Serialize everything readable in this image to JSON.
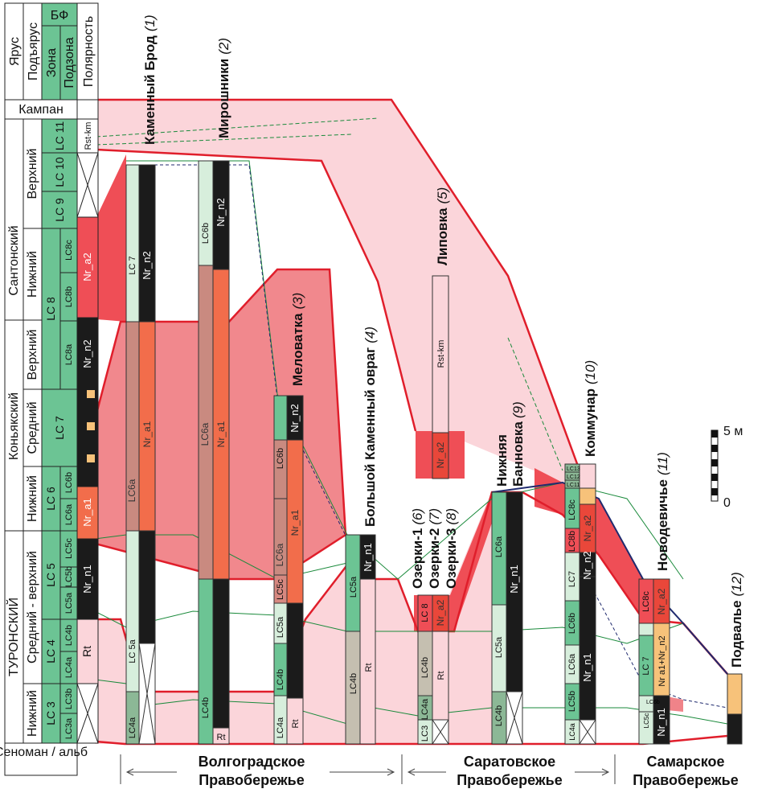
{
  "colors": {
    "lc_green": "#6cc494",
    "lc_light": "#d7eedc",
    "nr_black": "#1b1b1b",
    "nr_red": "#e9473a",
    "nr_orange": "#f26d4b",
    "pink_fill": "#fbd5da",
    "red_fill": "#ef7b81",
    "red_line": "#e01e2b",
    "green_line": "#1a8a3b",
    "navy_line": "#1f2a6e",
    "orange_sq": "#f7c27a",
    "gray_lc": "#c5bfb0"
  },
  "scale": {
    "top": "5 м",
    "bottom": "0"
  },
  "header": {
    "stage": "Ярус",
    "substage": "Подъярус",
    "zone": "Зона",
    "subzone": "Подзона",
    "bf": "БФ",
    "polarity": "Полярность"
  },
  "stages": {
    "campanian": "Кампан",
    "santonian": "Сантонский",
    "coniacian": "Коньякский",
    "turonian": "ТУРОНСКИЙ",
    "cenomanian": "Сеноман / альб"
  },
  "substages": {
    "santon_upper": "Верхний",
    "santon_lower": "Нижний",
    "con_upper": "Верхний",
    "con_middle": "Средний",
    "con_lower": "Нижний",
    "tur_midup": "Средний - верхний",
    "tur_lower": "Нижний"
  },
  "zones": {
    "lc11": "LC 11",
    "lc10": "LC 10",
    "lc9": "LC 9",
    "lc8": "LC 8",
    "lc7": "LC 7",
    "lc6": "LC 6",
    "lc5": "LC 5",
    "lc4": "LC 4",
    "lc3": "LC 3"
  },
  "subzones": {
    "lc8c": "LC8c",
    "lc8b": "LC8b",
    "lc8a": "LC8a",
    "lc6b": "LC6b",
    "lc6a": "LC6a",
    "lc5c": "LC5c",
    "lc5b": "LC5b",
    "lc5a": "LC5a",
    "lc4b": "LC4b",
    "lc4a": "LC4a",
    "lc3b": "LC3b",
    "lc3a": "LC3a"
  },
  "polarity": {
    "rstkm": "Rst-km",
    "nra2": "Nr_a2",
    "nrn2": "Nr_n2",
    "nra1": "Nr_a1",
    "nrn1": "Nr_n1",
    "rt": "Rt"
  },
  "sections": [
    {
      "id": "s1",
      "name": "Каменный Брод",
      "num": "(1)"
    },
    {
      "id": "s2",
      "name": "Мирошники",
      "num": "(2)"
    },
    {
      "id": "s3",
      "name": "Меловатка",
      "num": "(3)"
    },
    {
      "id": "s4",
      "name": "Большой Каменный овраг",
      "num": "(4)"
    },
    {
      "id": "s5",
      "name": "Липовка",
      "num": "(5)"
    },
    {
      "id": "s6",
      "name": "Озерки-1",
      "num": "(6)"
    },
    {
      "id": "s7",
      "name": "Озерки-2",
      "num": "(7)"
    },
    {
      "id": "s8",
      "name": "Озерки-3",
      "num": "(8)"
    },
    {
      "id": "s9a",
      "name": "Нижняя",
      "num": ""
    },
    {
      "id": "s9",
      "name": "Банновка",
      "num": "(9)"
    },
    {
      "id": "s10",
      "name": "Коммунар",
      "num": "(10)"
    },
    {
      "id": "s11",
      "name": "Новодевичье",
      "num": "(11)"
    },
    {
      "id": "s12",
      "name": "Подвалье",
      "num": "(12)"
    }
  ],
  "col_labels": {
    "c1_lc7": "LC 7",
    "c1_nrn2": "Nr_n2",
    "c1_lc6a": "LC6a",
    "c1_nra1": "Nr_a1",
    "c1_lc5a": "LC 5a",
    "c1_lc4a": "LC4a",
    "c2_lc6b": "LC6b",
    "c2_nrn2": "Nr_n2",
    "c2_lc6a": "LC6a",
    "c2_nra1": "Nr_a1",
    "c2_lc4b": "LC4b",
    "c2_rt": "Rt",
    "c3_nrn2": "Nr_n2",
    "c3_lc6b": "LC6b",
    "c3_lc6a": "LC6a",
    "c3_nra1": "Nr_a1",
    "c3_lc5c": "LC5c",
    "c3_lc5a": "LC5a",
    "c3_lc4b": "LC4b",
    "c3_lc4a": "LC4a",
    "c3_rt": "Rt",
    "c4_lc5a": "LC5a",
    "c4_nrn1": "Nr_n1",
    "c4_lc4b": "LC4b",
    "c4_rt": "Rt",
    "c5_rstkm": "Rst-km",
    "c5_nra2": "Nr_a2",
    "c6_lc8": "LC 8",
    "c6_nra2": "Nr_a2",
    "c6_lc4b": "LC4b",
    "c6_rt": "Rt",
    "c6_lc4a": "LC4a",
    "c6_lc3": "LC3",
    "c9_lc6a": "LC6a",
    "c9_nrn1": "Nr_n1",
    "c9_lc5a": "LC5a",
    "c9_lc4b": "LC4b",
    "c10_lc13": "LC13",
    "c10_lc12": "LC12",
    "c10_lc11": "LC11",
    "c10_lc8c": "LC8c",
    "c10_lc8b": "LC8b",
    "c10_nra2": "Nr_a2",
    "c10_nrn2": "Nr_n2",
    "c10_lc7": "LC7",
    "c10_lc6b": "LC6b",
    "c10_lc6a": "LC6a",
    "c10_nrn1": "Nr_n1",
    "c10_lc5b": "LC5b",
    "c10_lc4a": "LC4a",
    "c11_lc8c": "LC8c",
    "c11_nra2": "Nr_a2",
    "c11_lc7": "LC 7",
    "c11_nra1n2": "Nr a1+Nr_n2",
    "c11_lc5c": "LC5c",
    "c11_lc6b": "LC6b",
    "c11_nrn1": "Nr_n1"
  },
  "regions": [
    {
      "id": "volga",
      "line1": "Волгоградское",
      "line2": "Правобережье"
    },
    {
      "id": "saratov",
      "line1": "Саратовское",
      "line2": "Правобережье"
    },
    {
      "id": "samara",
      "line1": "Самарское",
      "line2": "Правобережье"
    }
  ]
}
